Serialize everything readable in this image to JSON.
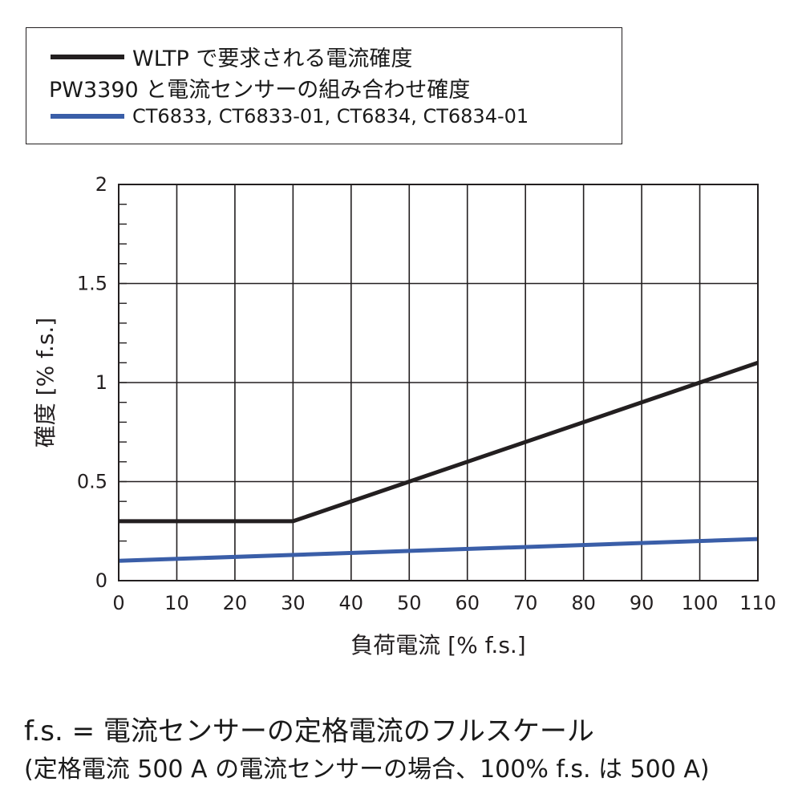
{
  "legend": {
    "items": [
      {
        "label": "WLTP で要求される電流確度",
        "color": "#231f20"
      },
      {
        "label": "CT6833, CT6833-01, CT6834, CT6834-01",
        "color": "#3a5ea8"
      }
    ],
    "group_heading": "PW3390 と電流センサーの組み合わせ確度"
  },
  "chart_data": {
    "type": "line",
    "xlabel": "負荷電流 [% f.s.]",
    "ylabel": "確度 [% f.s.]",
    "xlim": [
      0,
      110
    ],
    "ylim": [
      0,
      2
    ],
    "x_ticks": [
      "0",
      "10",
      "20",
      "30",
      "40",
      "50",
      "60",
      "70",
      "80",
      "90",
      "100",
      "110"
    ],
    "y_ticks": [
      "0",
      "0.5",
      "1",
      "1.5",
      "2"
    ],
    "grid": true,
    "legend_position": "top",
    "series": [
      {
        "name": "WLTP で要求される電流確度",
        "color": "#231f20",
        "x": [
          0,
          30,
          110
        ],
        "y": [
          0.3,
          0.3,
          1.1
        ]
      },
      {
        "name": "CT6833, CT6833-01, CT6834, CT6834-01",
        "color": "#3a5ea8",
        "x": [
          0,
          110
        ],
        "y": [
          0.1,
          0.21
        ]
      }
    ]
  },
  "footnote": {
    "line1": "f.s. = 電流センサーの定格電流のフルスケール",
    "line2": "(定格電流 500 A の電流センサーの場合、100% f.s. は 500 A)"
  }
}
